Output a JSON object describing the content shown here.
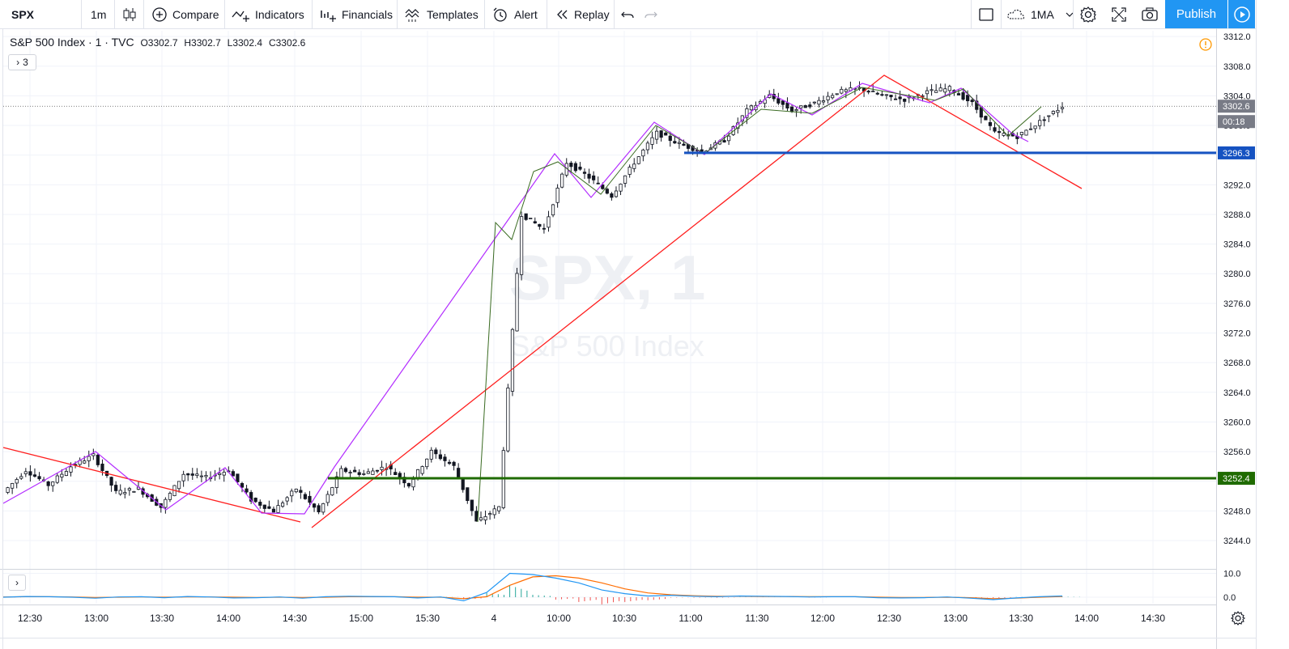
{
  "toolbar": {
    "symbol": "SPX",
    "interval": "1m",
    "compare": "Compare",
    "indicators": "Indicators",
    "financials": "Financials",
    "templates": "Templates",
    "alert": "Alert",
    "replay": "Replay",
    "layout": "1MA",
    "publish": "Publish"
  },
  "legend": {
    "title": "S&P 500 Index · 1 · TVC",
    "open": "O3302.7",
    "high": "H3302.7",
    "low": "L3302.4",
    "close": "C3302.6",
    "toggle": "3"
  },
  "watermark": {
    "symbol": "SPX, 1",
    "name": "S&P 500 Index"
  },
  "price_labels": {
    "last": "3302.6",
    "countdown": "00:18",
    "blue_line": "3296.3",
    "green_line": "3252.4"
  },
  "colors": {
    "up": "#ffffff",
    "down": "#131722",
    "red_trend": "#ff1f1f",
    "purple_zigzag": "#b32dff",
    "green_zigzag": "#3a6b22",
    "support_green": "#1f6b00",
    "resistance_blue": "#1552c1",
    "accent": "#2196f3",
    "macd_line": "#2196f3",
    "signal_line": "#ff6d00"
  },
  "chart_data": [
    {
      "type": "line",
      "title": "S&P 500 Index · 1 · TVC",
      "series_kind": "candlestick",
      "xlabel": "",
      "ylabel": "",
      "x_ticks": [
        "12:30",
        "13:00",
        "13:30",
        "14:00",
        "14:30",
        "15:00",
        "15:30",
        "4",
        "10:00",
        "10:30",
        "11:00",
        "11:30",
        "12:00",
        "12:30",
        "13:00",
        "13:30",
        "14:00",
        "14:30"
      ],
      "y_ticks": [
        3244.0,
        3248.0,
        3252.0,
        3256.0,
        3260.0,
        3264.0,
        3268.0,
        3272.0,
        3276.0,
        3280.0,
        3284.0,
        3288.0,
        3292.0,
        3296.0,
        3300.0,
        3304.0,
        3308.0,
        3312.0
      ],
      "ylim": [
        3240.8,
        3313.3
      ],
      "grid": true,
      "series": [
        {
          "x": [
            "12:20",
            "12:30",
            "12:40",
            "12:50",
            "13:00",
            "13:10",
            "13:20",
            "13:30",
            "13:40",
            "13:50",
            "14:00",
            "14:10",
            "14:20",
            "14:30",
            "14:40",
            "14:50",
            "15:00",
            "15:10",
            "15:20",
            "15:30",
            "15:40",
            "15:50",
            "4 09:30",
            "09:40",
            "09:50",
            "10:00",
            "10:10",
            "10:20",
            "10:30",
            "10:40",
            "10:50",
            "11:00",
            "11:10",
            "11:20",
            "11:30",
            "11:40",
            "11:50",
            "12:00",
            "12:10",
            "12:20",
            "12:30",
            "12:40",
            "12:50",
            "13:00",
            "13:10",
            "13:20",
            "13:30",
            "13:40"
          ],
          "values": [
            3250.5,
            3253.5,
            3251.5,
            3254.0,
            3255.5,
            3250.5,
            3251.0,
            3248.5,
            3253.0,
            3252.5,
            3253.5,
            3249.5,
            3248.0,
            3251.0,
            3247.8,
            3253.5,
            3253.0,
            3254.0,
            3251.5,
            3256.0,
            3254.0,
            3246.5,
            3248.5,
            3288.0,
            3286.0,
            3295.0,
            3293.0,
            3290.5,
            3295.0,
            3299.0,
            3297.5,
            3296.5,
            3298.0,
            3302.0,
            3304.0,
            3302.0,
            3303.0,
            3304.5,
            3305.0,
            3304.0,
            3303.5,
            3304.5,
            3305.0,
            3303.0,
            3299.0,
            3298.5,
            3300.5,
            3302.6
          ]
        }
      ],
      "horizontal_lines": [
        {
          "name": "",
          "value": 3296.3
        },
        {
          "name": "",
          "value": 3252.4
        }
      ]
    },
    {
      "type": "line",
      "title": "",
      "xlabel": "",
      "ylabel": "",
      "y_ticks": [
        0.0,
        10.0
      ],
      "ylim": [
        -4,
        12
      ],
      "grid": true,
      "series": [
        {
          "name": "",
          "values": [
            0,
            0.3,
            0.2,
            0,
            -0.4,
            0.1,
            0.2,
            -0.2,
            0.3,
            0.1,
            -0.3,
            -0.2,
            0.1,
            -0.4,
            0.2,
            0.4,
            0.3,
            0.2,
            -0.3,
            0.1,
            -1.5,
            2,
            10,
            9.5,
            8,
            6,
            3,
            1.5,
            0.5,
            0.8,
            0.4,
            0.2,
            0.5,
            0.4,
            0.3,
            0.1,
            0.2,
            0.2,
            -0.2,
            -0.3,
            -0.2,
            0.1,
            -0.4,
            -1,
            -0.3,
            0.2,
            0.5
          ]
        },
        {
          "name": "",
          "values": [
            0.1,
            0.2,
            0.2,
            0.1,
            -0.1,
            0,
            0.1,
            0,
            0.1,
            0.1,
            0,
            -0.1,
            0,
            -0.1,
            0,
            0.2,
            0.2,
            0.2,
            0,
            0,
            -0.6,
            0.2,
            5,
            8.5,
            9,
            8,
            6,
            3.5,
            1.8,
            1,
            0.6,
            0.4,
            0.4,
            0.3,
            0.3,
            0.2,
            0.2,
            0.2,
            0,
            -0.1,
            -0.1,
            0,
            -0.2,
            -0.6,
            -0.4,
            0,
            0.3
          ]
        }
      ]
    }
  ]
}
